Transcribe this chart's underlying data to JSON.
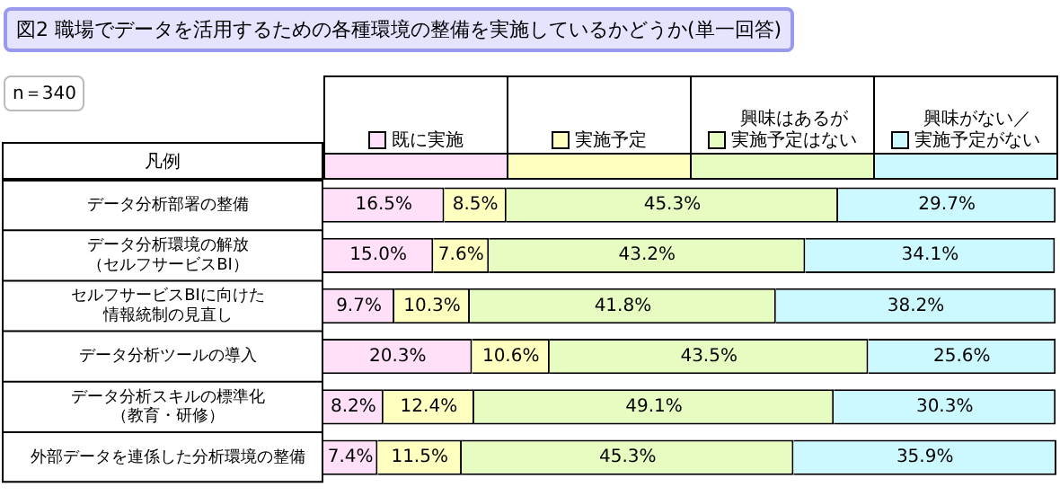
{
  "chart_data": {
    "type": "bar",
    "orientation": "horizontal",
    "stacked": true,
    "title": "図2 職場でデータを活用するための各種環境の整備を実施しているかどうか(単一回答)",
    "annotations": [
      "n＝340"
    ],
    "legend": "top",
    "legend_title": "凡例",
    "tick_labels": "y",
    "categories": [
      "データ分析部署の整備",
      "データ分析環境の解放（セルフサービスBI）",
      "セルフサービスBIに向けた情報統制の見直し",
      "データ分析ツールの導入",
      "データ分析スキルの標準化（教育・研修）",
      "外部データを連係した分析環境の整備"
    ],
    "series": [
      {
        "name": "既に実施",
        "color": "#ffe0f8",
        "values": [
          16.5,
          15.0,
          9.7,
          20.3,
          8.2,
          7.4
        ],
        "value_labels": [
          "16.5%",
          "15.0%",
          "9.7%",
          "20.3%",
          "8.2%",
          "7.4%"
        ]
      },
      {
        "name": "実施予定",
        "color": "#ffffc0",
        "values": [
          8.5,
          7.6,
          10.3,
          10.6,
          12.4,
          11.5
        ],
        "value_labels": [
          "8.5%",
          "7.6%",
          "10.3%",
          "10.6%",
          "12.4%",
          "11.5%"
        ]
      },
      {
        "name": "興味はあるが実施予定はない",
        "color": "#e6fcc0",
        "values": [
          45.3,
          43.2,
          41.8,
          43.5,
          49.1,
          45.3
        ],
        "value_labels": [
          "45.3%",
          "43.2%",
          "41.8%",
          "43.5%",
          "49.1%",
          "45.3%"
        ]
      },
      {
        "name": "興味がない／実施予定がない",
        "color": "#ccf8ff",
        "values": [
          29.7,
          34.1,
          38.2,
          25.6,
          30.3,
          35.9
        ],
        "value_labels": [
          "29.7%",
          "34.1%",
          "38.2%",
          "25.6%",
          "30.3%",
          "35.9%"
        ]
      }
    ]
  }
}
